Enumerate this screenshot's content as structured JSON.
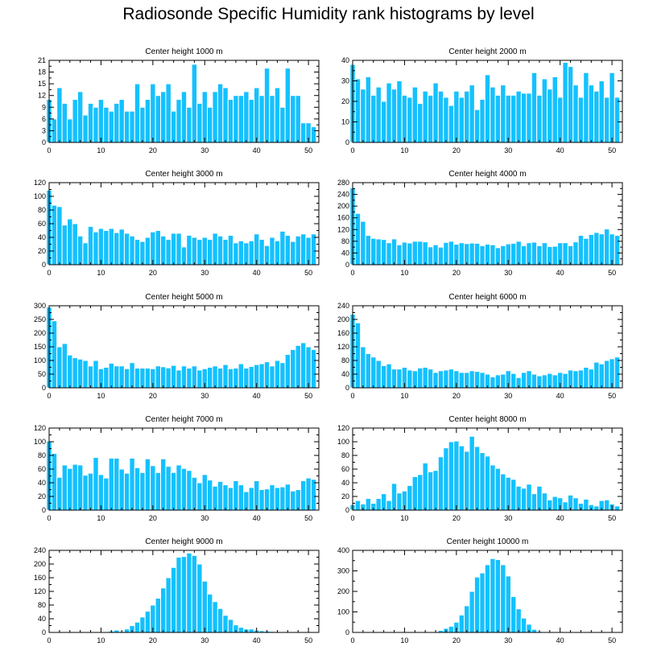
{
  "title": "Radiosonde Specific Humidity rank histograms by level",
  "colors": {
    "bar": "#14c1ff",
    "axis": "#000000",
    "background": "#ffffff"
  },
  "chart_data": [
    {
      "type": "bar",
      "title": "Center height 1000 m",
      "x": [
        0,
        1,
        2,
        3,
        4,
        5,
        6,
        7,
        8,
        9,
        10,
        11,
        12,
        13,
        14,
        15,
        16,
        17,
        18,
        19,
        20,
        21,
        22,
        23,
        24,
        25,
        26,
        27,
        28,
        29,
        30,
        31,
        32,
        33,
        34,
        35,
        36,
        37,
        38,
        39,
        40,
        41,
        42,
        43,
        44,
        45,
        46,
        47,
        48,
        49,
        50,
        51
      ],
      "values": [
        11,
        6,
        14,
        10,
        6,
        11,
        13,
        7,
        10,
        9,
        11,
        9,
        8,
        10,
        11,
        8,
        8,
        15,
        9,
        11,
        15,
        12,
        13,
        15,
        8,
        11,
        13,
        9,
        20,
        10,
        13,
        9,
        13,
        15,
        14,
        11,
        12,
        12,
        13,
        11,
        14,
        12,
        19,
        12,
        14,
        9,
        19,
        12,
        12,
        5,
        5,
        4
      ],
      "xlim": [
        0,
        52
      ],
      "ylim": [
        0,
        21
      ],
      "xticks": [
        0,
        10,
        20,
        30,
        40,
        50
      ],
      "yticks": [
        0,
        3,
        6,
        9,
        12,
        15,
        18,
        21
      ]
    },
    {
      "type": "bar",
      "title": "Center height 2000 m",
      "x": [
        0,
        1,
        2,
        3,
        4,
        5,
        6,
        7,
        8,
        9,
        10,
        11,
        12,
        13,
        14,
        15,
        16,
        17,
        18,
        19,
        20,
        21,
        22,
        23,
        24,
        25,
        26,
        27,
        28,
        29,
        30,
        31,
        32,
        33,
        34,
        35,
        36,
        37,
        38,
        39,
        40,
        41,
        42,
        43,
        44,
        45,
        46,
        47,
        48,
        49,
        50,
        51
      ],
      "values": [
        38,
        31,
        26,
        32,
        23,
        27,
        20,
        29,
        26,
        30,
        23,
        22,
        27,
        19,
        25,
        23,
        29,
        25,
        22,
        18,
        25,
        22,
        25,
        28,
        16,
        21,
        33,
        27,
        23,
        28,
        23,
        23,
        25,
        24,
        24,
        34,
        23,
        31,
        26,
        32,
        22,
        39,
        37,
        28,
        22,
        34,
        28,
        25,
        30,
        22,
        34,
        22
      ],
      "xlim": [
        0,
        52
      ],
      "ylim": [
        0,
        40
      ],
      "xticks": [
        0,
        10,
        20,
        30,
        40,
        50
      ],
      "yticks": [
        0,
        10,
        20,
        30,
        40
      ]
    },
    {
      "type": "bar",
      "title": "Center height 3000 m",
      "x": [
        0,
        1,
        2,
        3,
        4,
        5,
        6,
        7,
        8,
        9,
        10,
        11,
        12,
        13,
        14,
        15,
        16,
        17,
        18,
        19,
        20,
        21,
        22,
        23,
        24,
        25,
        26,
        27,
        28,
        29,
        30,
        31,
        32,
        33,
        34,
        35,
        36,
        37,
        38,
        39,
        40,
        41,
        42,
        43,
        44,
        45,
        46,
        47,
        48,
        49,
        50,
        51
      ],
      "values": [
        109,
        87,
        85,
        58,
        67,
        60,
        42,
        32,
        56,
        48,
        53,
        50,
        53,
        47,
        52,
        46,
        42,
        37,
        34,
        40,
        48,
        50,
        42,
        37,
        46,
        46,
        26,
        43,
        40,
        37,
        40,
        37,
        46,
        42,
        37,
        43,
        32,
        35,
        32,
        35,
        45,
        37,
        28,
        40,
        35,
        49,
        43,
        34,
        42,
        45,
        40,
        45
      ],
      "xlim": [
        0,
        52
      ],
      "ylim": [
        0,
        120
      ],
      "xticks": [
        0,
        10,
        20,
        30,
        40,
        50
      ],
      "yticks": [
        0,
        20,
        40,
        60,
        80,
        100,
        120
      ]
    },
    {
      "type": "bar",
      "title": "Center height 4000 m",
      "x": [
        0,
        1,
        2,
        3,
        4,
        5,
        6,
        7,
        8,
        9,
        10,
        11,
        12,
        13,
        14,
        15,
        16,
        17,
        18,
        19,
        20,
        21,
        22,
        23,
        24,
        25,
        26,
        27,
        28,
        29,
        30,
        31,
        32,
        33,
        34,
        35,
        36,
        37,
        38,
        39,
        40,
        41,
        42,
        43,
        44,
        45,
        46,
        47,
        48,
        49,
        50,
        51
      ],
      "values": [
        262,
        175,
        148,
        100,
        90,
        88,
        86,
        75,
        88,
        68,
        77,
        74,
        80,
        80,
        78,
        61,
        68,
        60,
        76,
        80,
        70,
        75,
        72,
        74,
        73,
        65,
        70,
        68,
        58,
        65,
        71,
        73,
        80,
        65,
        75,
        77,
        65,
        75,
        62,
        63,
        75,
        75,
        65,
        78,
        100,
        90,
        103,
        110,
        105,
        122,
        105,
        100
      ],
      "xlim": [
        0,
        52
      ],
      "ylim": [
        0,
        280
      ],
      "xticks": [
        0,
        10,
        20,
        30,
        40,
        50
      ],
      "yticks": [
        0,
        40,
        80,
        120,
        160,
        200,
        240,
        280
      ]
    },
    {
      "type": "bar",
      "title": "Center height 5000 m",
      "x": [
        0,
        1,
        2,
        3,
        4,
        5,
        6,
        7,
        8,
        9,
        10,
        11,
        12,
        13,
        14,
        15,
        16,
        17,
        18,
        19,
        20,
        21,
        22,
        23,
        24,
        25,
        26,
        27,
        28,
        29,
        30,
        31,
        32,
        33,
        34,
        35,
        36,
        37,
        38,
        39,
        40,
        41,
        42,
        43,
        44,
        45,
        46,
        47,
        48,
        49,
        50,
        51
      ],
      "values": [
        295,
        245,
        150,
        162,
        120,
        110,
        105,
        100,
        80,
        100,
        70,
        75,
        90,
        80,
        80,
        70,
        92,
        72,
        72,
        72,
        70,
        80,
        77,
        73,
        82,
        65,
        80,
        72,
        80,
        65,
        70,
        75,
        80,
        72,
        85,
        70,
        72,
        88,
        72,
        78,
        85,
        88,
        95,
        80,
        100,
        92,
        122,
        140,
        155,
        165,
        150,
        140
      ],
      "xlim": [
        0,
        52
      ],
      "ylim": [
        0,
        300
      ],
      "xticks": [
        0,
        10,
        20,
        30,
        40,
        50
      ],
      "yticks": [
        0,
        50,
        100,
        150,
        200,
        250,
        300
      ]
    },
    {
      "type": "bar",
      "title": "Center height 6000 m",
      "x": [
        0,
        1,
        2,
        3,
        4,
        5,
        6,
        7,
        8,
        9,
        10,
        11,
        12,
        13,
        14,
        15,
        16,
        17,
        18,
        19,
        20,
        21,
        22,
        23,
        24,
        25,
        26,
        27,
        28,
        29,
        30,
        31,
        32,
        33,
        34,
        35,
        36,
        37,
        38,
        39,
        40,
        41,
        42,
        43,
        44,
        45,
        46,
        47,
        48,
        49,
        50,
        51
      ],
      "values": [
        215,
        190,
        120,
        100,
        90,
        80,
        65,
        70,
        55,
        55,
        60,
        52,
        50,
        58,
        60,
        55,
        45,
        50,
        52,
        55,
        50,
        45,
        45,
        50,
        48,
        45,
        40,
        32,
        38,
        40,
        50,
        42,
        30,
        45,
        50,
        40,
        35,
        38,
        42,
        38,
        45,
        42,
        52,
        50,
        52,
        60,
        55,
        75,
        70,
        80,
        85,
        90
      ],
      "xlim": [
        0,
        52
      ],
      "ylim": [
        0,
        240
      ],
      "xticks": [
        0,
        10,
        20,
        30,
        40,
        50
      ],
      "yticks": [
        0,
        40,
        80,
        120,
        160,
        200,
        240
      ]
    },
    {
      "type": "bar",
      "title": "Center height 7000 m",
      "x": [
        0,
        1,
        2,
        3,
        4,
        5,
        6,
        7,
        8,
        9,
        10,
        11,
        12,
        13,
        14,
        15,
        16,
        17,
        18,
        19,
        20,
        21,
        22,
        23,
        24,
        25,
        26,
        27,
        28,
        29,
        30,
        31,
        32,
        33,
        34,
        35,
        36,
        37,
        38,
        39,
        40,
        41,
        42,
        43,
        44,
        45,
        46,
        47,
        48,
        49,
        50,
        51
      ],
      "values": [
        101,
        83,
        48,
        66,
        61,
        67,
        66,
        51,
        54,
        77,
        52,
        47,
        76,
        76,
        60,
        54,
        76,
        62,
        55,
        75,
        65,
        55,
        75,
        64,
        55,
        66,
        61,
        58,
        48,
        40,
        52,
        44,
        35,
        42,
        37,
        33,
        43,
        37,
        27,
        33,
        43,
        30,
        31,
        37,
        33,
        34,
        38,
        28,
        30,
        43,
        47,
        45
      ],
      "xlim": [
        0,
        52
      ],
      "ylim": [
        0,
        120
      ],
      "xticks": [
        0,
        10,
        20,
        30,
        40,
        50
      ],
      "yticks": [
        0,
        20,
        40,
        60,
        80,
        100,
        120
      ]
    },
    {
      "type": "bar",
      "title": "Center height 8000 m",
      "x": [
        0,
        1,
        2,
        3,
        4,
        5,
        6,
        7,
        8,
        9,
        10,
        11,
        12,
        13,
        14,
        15,
        16,
        17,
        18,
        19,
        20,
        21,
        22,
        23,
        24,
        25,
        26,
        27,
        28,
        29,
        30,
        31,
        32,
        33,
        34,
        35,
        36,
        37,
        38,
        39,
        40,
        41,
        42,
        43,
        44,
        45,
        46,
        47,
        48,
        49,
        50,
        51
      ],
      "values": [
        8,
        14,
        9,
        17,
        10,
        17,
        24,
        14,
        39,
        25,
        28,
        36,
        49,
        52,
        69,
        56,
        58,
        78,
        91,
        100,
        101,
        94,
        86,
        108,
        93,
        84,
        79,
        66,
        61,
        53,
        48,
        45,
        35,
        32,
        38,
        24,
        35,
        25,
        15,
        20,
        18,
        12,
        22,
        18,
        10,
        16,
        8,
        6,
        14,
        15,
        9,
        6
      ],
      "xlim": [
        0,
        52
      ],
      "ylim": [
        0,
        120
      ],
      "xticks": [
        0,
        10,
        20,
        30,
        40,
        50
      ],
      "yticks": [
        0,
        20,
        40,
        60,
        80,
        100,
        120
      ]
    },
    {
      "type": "bar",
      "title": "Center height 9000 m",
      "x": [
        0,
        1,
        2,
        3,
        4,
        5,
        6,
        7,
        8,
        9,
        10,
        11,
        12,
        13,
        14,
        15,
        16,
        17,
        18,
        19,
        20,
        21,
        22,
        23,
        24,
        25,
        26,
        27,
        28,
        29,
        30,
        31,
        32,
        33,
        34,
        35,
        36,
        37,
        38,
        39,
        40,
        41,
        42,
        43,
        44,
        45,
        46,
        47,
        48,
        49,
        50,
        51
      ],
      "values": [
        0,
        0,
        0,
        0,
        0,
        0,
        0,
        0,
        0,
        1,
        1,
        2,
        4,
        7,
        3,
        10,
        20,
        30,
        45,
        62,
        80,
        100,
        130,
        160,
        190,
        220,
        222,
        232,
        225,
        200,
        150,
        112,
        90,
        70,
        50,
        38,
        22,
        15,
        10,
        10,
        7,
        5,
        4,
        3,
        2,
        1,
        2,
        1,
        1,
        0,
        0,
        0
      ],
      "xlim": [
        0,
        52
      ],
      "ylim": [
        0,
        240
      ],
      "xticks": [
        0,
        10,
        20,
        30,
        40,
        50
      ],
      "yticks": [
        0,
        40,
        80,
        120,
        160,
        200,
        240
      ]
    },
    {
      "type": "bar",
      "title": "Center height 10000 m",
      "x": [
        0,
        1,
        2,
        3,
        4,
        5,
        6,
        7,
        8,
        9,
        10,
        11,
        12,
        13,
        14,
        15,
        16,
        17,
        18,
        19,
        20,
        21,
        22,
        23,
        24,
        25,
        26,
        27,
        28,
        29,
        30,
        31,
        32,
        33,
        34,
        35,
        36,
        37,
        38,
        39,
        40,
        41,
        42,
        43,
        44,
        45,
        46,
        47,
        48,
        49,
        50,
        51
      ],
      "values": [
        0,
        0,
        0,
        0,
        0,
        0,
        0,
        0,
        0,
        0,
        0,
        0,
        0,
        0,
        0,
        0,
        2,
        10,
        20,
        30,
        50,
        85,
        130,
        200,
        270,
        290,
        330,
        360,
        355,
        330,
        275,
        175,
        115,
        70,
        40,
        15,
        5,
        3,
        1,
        0,
        0,
        0,
        0,
        0,
        0,
        0,
        0,
        0,
        0,
        0,
        0,
        0
      ],
      "xlim": [
        0,
        52
      ],
      "ylim": [
        0,
        400
      ],
      "xticks": [
        0,
        10,
        20,
        30,
        40,
        50
      ],
      "yticks": [
        0,
        100,
        200,
        300,
        400
      ]
    }
  ]
}
